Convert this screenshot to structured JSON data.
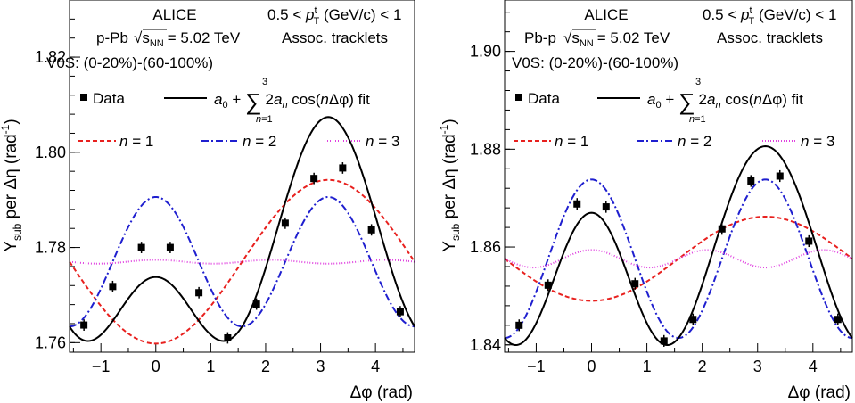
{
  "chart_data": [
    {
      "type": "scatter",
      "experiment": "ALICE",
      "system": "p-Pb",
      "energy": "= 5.02 TeV",
      "pt_range": "0.5 < p^t_T (GeV/c) < 1",
      "assoc": "Assoc. tracklets",
      "selection": "V0S: (0-20%)-(60-100%)",
      "xlabel": "Δφ (rad)",
      "ylabel": "Y_sub per Δη (rad^-1)",
      "xlim": [
        -1.571,
        4.712
      ],
      "ylim": [
        1.758,
        1.832
      ],
      "xticks": [
        -1,
        0,
        1,
        2,
        3,
        4
      ],
      "yticks": [
        1.76,
        1.78,
        1.8,
        1.82
      ],
      "legend": {
        "data": "Data",
        "fit": "a0 + Σ 2an cos(nΔφ) fit",
        "n1": "n = 1",
        "n2": "n = 2",
        "n3": "n = 3"
      },
      "points": {
        "x": [
          -1.309,
          -0.785,
          -0.262,
          0.262,
          0.785,
          1.309,
          1.833,
          2.356,
          2.88,
          3.403,
          3.927,
          4.451
        ],
        "y": [
          1.7637,
          1.7718,
          1.78,
          1.78,
          1.7705,
          1.761,
          1.7681,
          1.7851,
          1.7945,
          1.7967,
          1.7837,
          1.7665
        ],
        "err": [
          0.0012,
          0.0012,
          0.0012,
          0.0012,
          0.0012,
          0.0012,
          0.0012,
          0.0012,
          0.0012,
          0.0012,
          0.0012,
          0.0012
        ]
      },
      "fit": {
        "a0": 1.777,
        "a1": -0.0086,
        "a2": 0.0068,
        "a3": 0.0002
      },
      "colors": {
        "data": "#000000",
        "fit": "#000000",
        "n1": "#e8201e",
        "n2": "#1f1fcf",
        "n3": "#e040e0"
      }
    },
    {
      "type": "scatter",
      "experiment": "ALICE",
      "system": "Pb-p",
      "energy": "= 5.02 TeV",
      "pt_range": "0.5 < p^t_T (GeV/c) < 1",
      "assoc": "Assoc. tracklets",
      "selection": "V0S: (0-20%)-(60-100%)",
      "xlabel": "Δφ (rad)",
      "ylabel": "Y_sub per Δη (rad^-1)",
      "xlim": [
        -1.571,
        4.712
      ],
      "ylim": [
        1.8385,
        1.9105
      ],
      "xticks": [
        -1,
        0,
        1,
        2,
        3,
        4
      ],
      "yticks": [
        1.84,
        1.86,
        1.88,
        1.9
      ],
      "legend": {
        "data": "Data",
        "fit": "a0 + Σ 2an cos(nΔφ) fit",
        "n1": "n = 1",
        "n2": "n = 2",
        "n3": "n = 3"
      },
      "points": {
        "x": [
          -1.309,
          -0.785,
          -0.262,
          0.262,
          0.785,
          1.309,
          1.833,
          2.356,
          2.88,
          3.403,
          3.927,
          4.451
        ],
        "y": [
          1.844,
          1.8522,
          1.8688,
          1.8682,
          1.8525,
          1.8408,
          1.8452,
          1.8637,
          1.8735,
          1.8745,
          1.8612,
          1.8452
        ],
        "err": [
          0.0012,
          0.0012,
          0.0012,
          0.0012,
          0.0012,
          0.0012,
          0.0012,
          0.0012,
          0.0012,
          0.0012,
          0.0012,
          0.0012
        ]
      },
      "fit": {
        "a0": 1.8576,
        "a1": -0.0043,
        "a2": 0.0081,
        "a3": 0.0009
      },
      "colors": {
        "data": "#000000",
        "fit": "#000000",
        "n1": "#e8201e",
        "n2": "#1f1fcf",
        "n3": "#e040e0"
      }
    }
  ]
}
